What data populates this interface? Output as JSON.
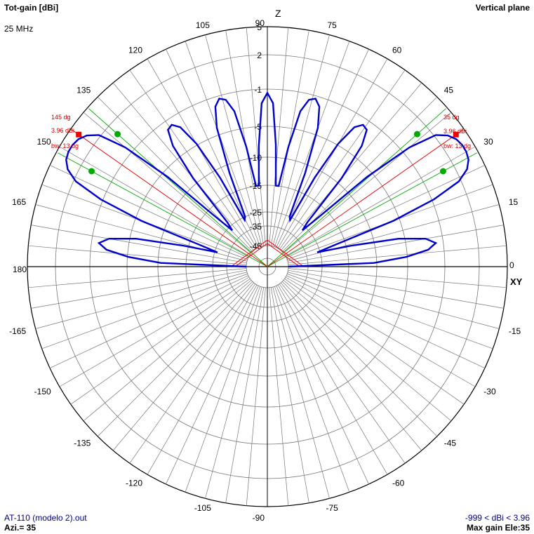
{
  "header": {
    "title": "Tot-gain [dBi]",
    "plane": "Vertical plane",
    "frequency": "25 MHz"
  },
  "footer": {
    "file": "AT-110 (modelo 2).out",
    "azimuth": "Azi.= 35",
    "range": "-999 < dBi < 3.96",
    "max_gain": "Max gain Ele:35"
  },
  "colors": {
    "pattern": "#0000cc",
    "marker_max": "#ee0000",
    "marker_bw": "#00aa00",
    "grid": "#777777",
    "annotation": "#cc0000"
  },
  "chart_data": {
    "type": "polar",
    "radial_unit": "dBi",
    "ring_labels": [
      "5",
      "2",
      "-1",
      "-5",
      "-10",
      "-15",
      "-25",
      "-35",
      "-45"
    ],
    "ring_values": [
      5,
      2,
      -1,
      -5,
      -10,
      -15,
      -25,
      -35,
      -45
    ],
    "angle_labels": [
      {
        "deg": 0,
        "text": "0"
      },
      {
        "deg": 15,
        "text": "15"
      },
      {
        "deg": 30,
        "text": "30"
      },
      {
        "deg": 45,
        "text": "45"
      },
      {
        "deg": 60,
        "text": "60"
      },
      {
        "deg": 75,
        "text": "75"
      },
      {
        "deg": 90,
        "text": "90"
      },
      {
        "deg": 105,
        "text": "105"
      },
      {
        "deg": 120,
        "text": "120"
      },
      {
        "deg": 135,
        "text": "135"
      },
      {
        "deg": 150,
        "text": "150"
      },
      {
        "deg": 165,
        "text": "165"
      },
      {
        "deg": 180,
        "text": "180"
      },
      {
        "deg": -165,
        "text": "-165"
      },
      {
        "deg": -150,
        "text": "-150"
      },
      {
        "deg": -135,
        "text": "-135"
      },
      {
        "deg": -120,
        "text": "-120"
      },
      {
        "deg": -105,
        "text": "-105"
      },
      {
        "deg": -90,
        "text": "-90"
      },
      {
        "deg": -75,
        "text": "-75"
      },
      {
        "deg": -60,
        "text": "-60"
      },
      {
        "deg": -45,
        "text": "-45"
      },
      {
        "deg": -30,
        "text": "-30"
      },
      {
        "deg": -15,
        "text": "-15"
      }
    ],
    "axis_labels": {
      "z": "Z",
      "xy": "XY"
    },
    "pattern": {
      "angles": [
        0,
        2,
        4,
        6,
        8,
        10,
        12,
        14,
        16,
        18,
        20,
        22,
        24,
        26,
        28,
        30,
        32,
        34,
        36,
        38,
        40,
        42,
        44,
        46,
        48,
        50,
        52,
        54,
        56,
        58,
        60,
        62,
        64,
        66,
        68,
        70,
        72,
        74,
        76,
        78,
        80,
        82,
        84,
        86,
        88,
        90,
        92,
        94,
        96,
        98,
        100,
        102,
        104,
        106,
        108,
        110,
        112,
        114,
        116,
        118,
        120,
        122,
        124,
        126,
        128,
        130,
        132,
        134,
        136,
        138,
        140,
        142,
        144,
        146,
        148,
        150,
        152,
        154,
        156,
        158,
        160,
        162,
        164,
        166,
        168,
        170,
        172,
        174,
        176,
        178,
        180
      ],
      "gains": [
        -45,
        -10.5,
        -5.2,
        -2.7,
        -1.8,
        -2.8,
        -6,
        -14,
        -27,
        -18,
        -6,
        -0.8,
        1.8,
        3.1,
        3.7,
        3.9,
        3.9,
        3.7,
        3.2,
        2.2,
        -0.3,
        -6,
        -19,
        -28,
        -23,
        -9,
        -3.6,
        -1.9,
        -1.7,
        -2.4,
        -4.8,
        -11.5,
        -27,
        -25,
        -11.5,
        -4.2,
        -2,
        -1.3,
        -1.6,
        -3,
        -8,
        -15,
        -15,
        -8,
        -2.5,
        -1.4,
        -2.5,
        -8,
        -15,
        -15,
        -8,
        -3,
        -1.6,
        -1.3,
        -2,
        -4.2,
        -11.5,
        -25,
        -27,
        -11.5,
        -4.8,
        -2.4,
        -1.7,
        -1.9,
        -3.6,
        -9,
        -23,
        -28,
        -19,
        -6,
        -0.3,
        2.2,
        3.2,
        3.7,
        3.9,
        3.9,
        3.7,
        3.1,
        1.8,
        -0.8,
        -6,
        -18,
        -27,
        -14,
        -6,
        -2.8,
        -1.8,
        -2.7,
        -5.2,
        -10.5,
        -45
      ]
    },
    "annotations": {
      "right": {
        "max_angle": "35 dg",
        "max_gain": "3.96 dBi",
        "beamwidth": "bw: 13 dg"
      },
      "left": {
        "max_angle": "145 dg",
        "max_gain": "3.96 dBi",
        "beamwidth": "bw: 13 dg"
      }
    },
    "max_gain_dbi": 3.96,
    "max_gain_angles": [
      35,
      145
    ],
    "beamwidth_edges": [
      28.5,
      41.5,
      138.5,
      151.5
    ]
  }
}
